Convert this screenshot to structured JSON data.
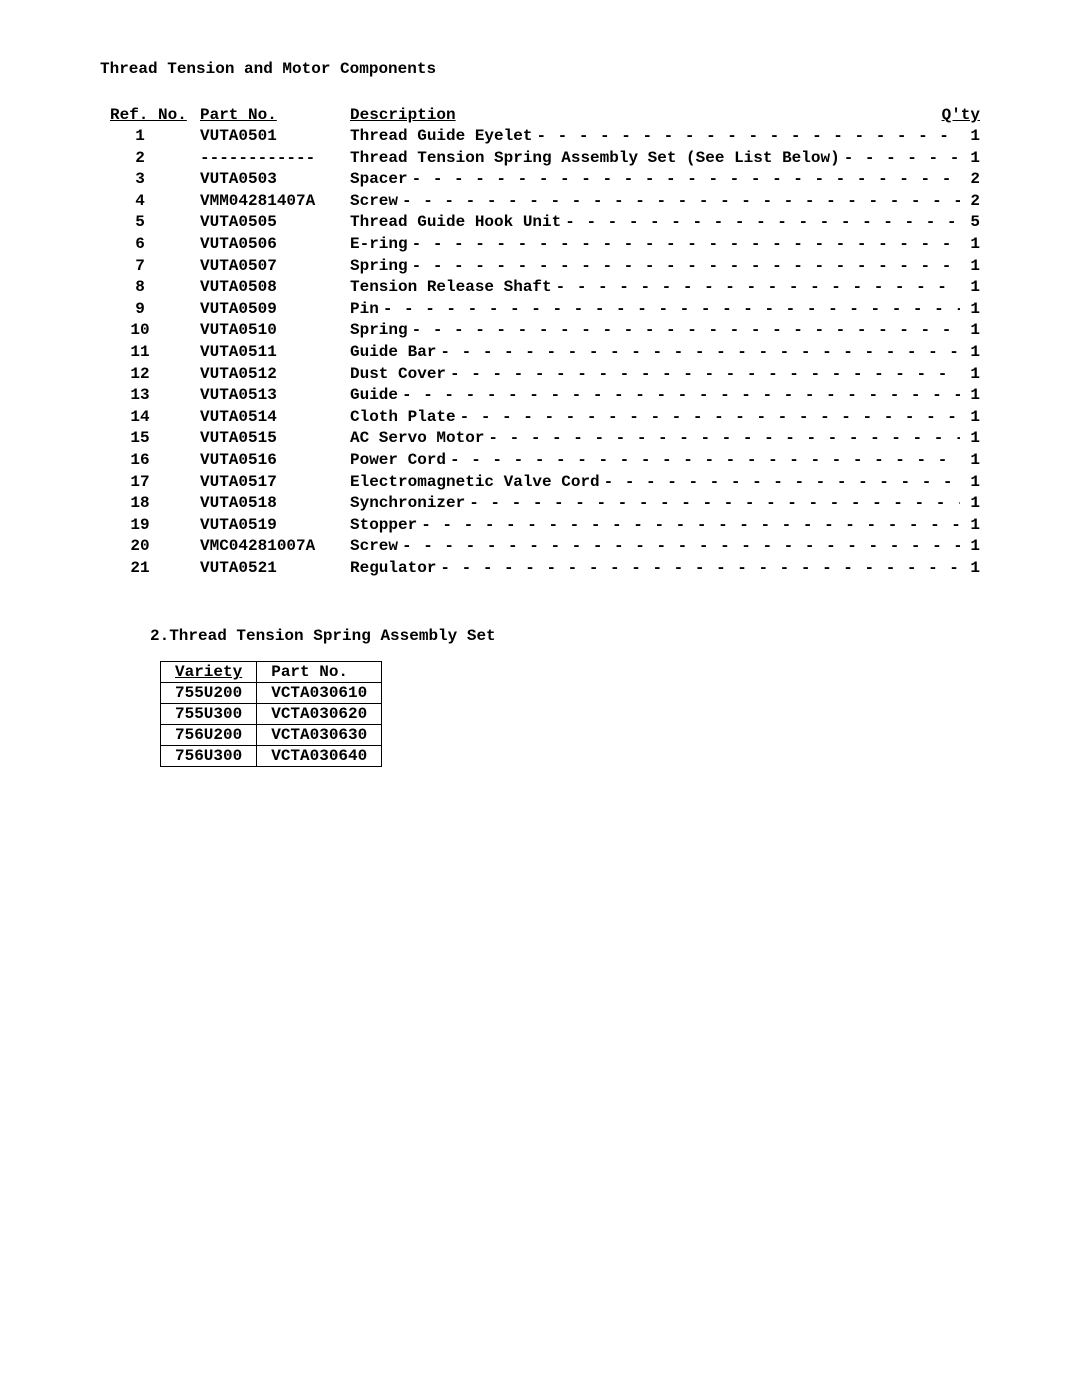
{
  "title": "Thread Tension and Motor Components",
  "headers": {
    "ref": "Ref. No.",
    "part": "Part No.",
    "desc": "Description",
    "qty": "Q'ty"
  },
  "leader_fill": "- - - - - - - - - - - - - - - - - - - - - - - - - - - - - - - - - - - - - - - - - - - - - - - - - - - - - - - -",
  "dash_part": "------------",
  "rows": [
    {
      "ref": "1",
      "part": "VUTA0501",
      "desc": "Thread Guide Eyelet",
      "qty": "1"
    },
    {
      "ref": "2",
      "part": "DASH",
      "desc": "Thread Tension Spring Assembly Set (See List Below)",
      "qty": "1"
    },
    {
      "ref": "3",
      "part": "VUTA0503",
      "desc": "Spacer",
      "qty": "2"
    },
    {
      "ref": "4",
      "part": "VMM04281407A",
      "desc": "Screw",
      "qty": "2"
    },
    {
      "ref": "5",
      "part": "VUTA0505",
      "desc": "Thread Guide Hook Unit",
      "qty": "5"
    },
    {
      "ref": "6",
      "part": "VUTA0506",
      "desc": "E-ring",
      "qty": "1"
    },
    {
      "ref": "7",
      "part": "VUTA0507",
      "desc": "Spring",
      "qty": "1"
    },
    {
      "ref": "8",
      "part": "VUTA0508",
      "desc": "Tension Release Shaft",
      "qty": "1"
    },
    {
      "ref": "9",
      "part": "VUTA0509",
      "desc": "Pin",
      "qty": "1"
    },
    {
      "ref": "10",
      "part": "VUTA0510",
      "desc": "Spring",
      "qty": "1"
    },
    {
      "ref": "11",
      "part": "VUTA0511",
      "desc": "Guide Bar",
      "qty": "1"
    },
    {
      "ref": "12",
      "part": "VUTA0512",
      "desc": "Dust Cover",
      "qty": "1"
    },
    {
      "ref": "13",
      "part": "VUTA0513",
      "desc": "Guide",
      "qty": "1"
    },
    {
      "ref": "14",
      "part": "VUTA0514",
      "desc": "Cloth Plate",
      "qty": "1"
    },
    {
      "ref": "15",
      "part": "VUTA0515",
      "desc": "AC Servo Motor",
      "qty": "1"
    },
    {
      "ref": "16",
      "part": "VUTA0516",
      "desc": "Power Cord",
      "qty": "1"
    },
    {
      "ref": "17",
      "part": "VUTA0517",
      "desc": "Electromagnetic Valve Cord",
      "qty": "1"
    },
    {
      "ref": "18",
      "part": "VUTA0518",
      "desc": "Synchronizer",
      "qty": "1"
    },
    {
      "ref": "19",
      "part": "VUTA0519",
      "desc": "Stopper",
      "qty": "1"
    },
    {
      "ref": "20",
      "part": "VMC04281007A",
      "desc": "Screw",
      "qty": "1"
    },
    {
      "ref": "21",
      "part": "VUTA0521",
      "desc": "Regulator",
      "qty": "1"
    }
  ],
  "section2": {
    "title": "2.Thread Tension Spring Assembly Set",
    "headers": {
      "variety": "Variety",
      "part": "Part No."
    },
    "rows": [
      {
        "variety": "755U200",
        "part": "VCTA030610"
      },
      {
        "variety": "755U300",
        "part": "VCTA030620"
      },
      {
        "variety": "756U200",
        "part": "VCTA030630"
      },
      {
        "variety": "756U300",
        "part": "VCTA030640"
      }
    ]
  }
}
